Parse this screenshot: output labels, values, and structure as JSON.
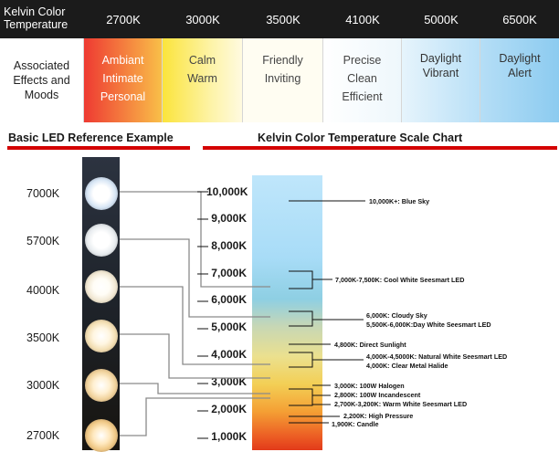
{
  "top_table": {
    "header_first": "Kelvin Color Temperature",
    "row_label": "Associated Effects and Moods",
    "columns": [
      {
        "kelvin": "2700K",
        "moods": [
          "Ambiant",
          "Intimate",
          "Personal"
        ],
        "color": "#f8b343"
      },
      {
        "kelvin": "3000K",
        "moods": [
          "Calm",
          "Warm"
        ],
        "color": "#fdf0a0"
      },
      {
        "kelvin": "3500K",
        "moods": [
          "Friendly",
          "Inviting"
        ],
        "color": "#fffbe8"
      },
      {
        "kelvin": "4100K",
        "moods": [
          "Precise",
          "Clean",
          "Efficient"
        ],
        "color": "#f7fbfd"
      },
      {
        "kelvin": "5000K",
        "moods": [
          "Daylight",
          "Vibrant"
        ],
        "color": "#cfe9f8"
      },
      {
        "kelvin": "6500K",
        "moods": [
          "Daylight",
          "Alert"
        ],
        "color": "#a4d6f3"
      }
    ]
  },
  "left_title": "Basic LED Reference Example",
  "right_title": "Kelvin Color Temperature Scale Chart",
  "led_labels": [
    "7000K",
    "5700K",
    "4000K",
    "3500K",
    "3000K",
    "2700K"
  ],
  "scale_labels": [
    "10,000K",
    "9,000K",
    "8,000K",
    "7,000K",
    "6,000K",
    "5,000K",
    "4,000K",
    "3,000K",
    "2,000K",
    "1,000K"
  ],
  "notes": [
    "10,000K+: Blue Sky",
    "7,000K-7,500K: Cool White Seesmart LED",
    "6,000K: Cloudy Sky",
    "5,500K-6,000K:Day White Seesmart LED",
    "4,800K: Direct Sunlight",
    "4,000K-4,5000K: Natural White Seesmart LED",
    "4,000K: Clear Metal Halide",
    "3,000K: 100W Halogen",
    "2,800K: 100W Incandescent",
    "2,700K-3,200K: Warm White Seesmart LED",
    "2,200K: High Pressure",
    "1,900K: Candle"
  ]
}
